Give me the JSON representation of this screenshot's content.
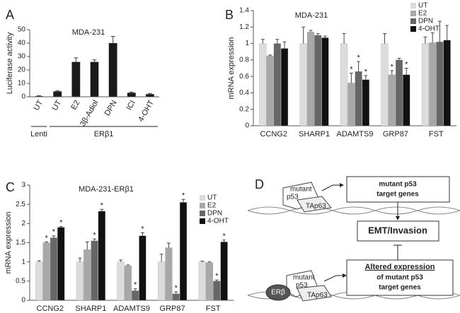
{
  "chart_data": [
    {
      "type": "bar",
      "panel_label": "A",
      "title": "MDA-231",
      "y_label": "Luciferase activity",
      "categories": [
        "UT",
        "UT",
        "E2",
        "3β-Adiol",
        "DPN",
        "ICI",
        "4-OHT"
      ],
      "values": [
        0.5,
        4,
        26,
        26,
        40,
        3,
        2
      ],
      "errors": [
        0.3,
        0.5,
        3,
        1.5,
        5,
        0.5,
        0.5
      ],
      "color": "#1a1a1a",
      "group_labels": [
        "Lenti",
        "ERβ1"
      ],
      "ylim": [
        0,
        50
      ],
      "yticks": [
        0,
        10,
        20,
        30,
        40,
        50
      ]
    },
    {
      "type": "bar",
      "panel_label": "B",
      "title": "MDA-231",
      "y_label": "mRNA expression",
      "significance_label": "*",
      "categories": [
        "CCNG2",
        "SHARP1",
        "ADAMTS9",
        "GRP87",
        "FST"
      ],
      "series": [
        {
          "name": "UT",
          "color": "#dcdcdc",
          "values": [
            1.0,
            1.0,
            1.0,
            1.0,
            1.0
          ],
          "errors": [
            0.05,
            0.2,
            0.12,
            0.12,
            0.08
          ],
          "significant": [
            false,
            false,
            false,
            false,
            false
          ]
        },
        {
          "name": "E2",
          "color": "#a8a8a8",
          "values": [
            0.85,
            1.14,
            0.52,
            0.62,
            1.01
          ],
          "errors": [
            0.01,
            0.02,
            0.12,
            0.05,
            0.12
          ],
          "significant": [
            false,
            false,
            true,
            true,
            false
          ]
        },
        {
          "name": "DPN",
          "color": "#666666",
          "values": [
            1.0,
            1.1,
            0.66,
            0.8,
            1.02
          ],
          "errors": [
            0.05,
            0.02,
            0.12,
            0.02,
            0.25
          ],
          "significant": [
            false,
            false,
            true,
            false,
            false
          ]
        },
        {
          "name": "4-OHT",
          "color": "#111111",
          "values": [
            0.94,
            1.07,
            0.56,
            0.62,
            1.04
          ],
          "errors": [
            0.08,
            0.02,
            0.05,
            0.08,
            0.18
          ],
          "significant": [
            false,
            false,
            true,
            true,
            false
          ]
        }
      ],
      "ylim": [
        0,
        1.4
      ],
      "yticks": [
        0,
        0.2,
        0.4,
        0.6,
        0.8,
        1,
        1.2,
        1.4
      ]
    },
    {
      "type": "bar",
      "panel_label": "C",
      "title": "MDA-231-ERβ1",
      "y_label": "mRNA expression",
      "significance_label": "*",
      "categories": [
        "CCNG2",
        "SHARP1",
        "ADAMTS9",
        "GRP87",
        "FST"
      ],
      "series": [
        {
          "name": "UT",
          "color": "#dcdcdc",
          "values": [
            1,
            1,
            1,
            1,
            1
          ],
          "errors": [
            0.03,
            0.1,
            0.05,
            0.2,
            0.02
          ],
          "significant": [
            false,
            false,
            false,
            false,
            false
          ]
        },
        {
          "name": "E2",
          "color": "#a8a8a8",
          "values": [
            1.5,
            1.32,
            0.9,
            1.37,
            0.98
          ],
          "errors": [
            0.02,
            0.2,
            0.02,
            0.12,
            0.02
          ],
          "significant": [
            true,
            false,
            false,
            false,
            false
          ]
        },
        {
          "name": "DPN",
          "color": "#666666",
          "values": [
            1.63,
            1.55,
            0.25,
            0.17,
            0.5
          ],
          "errors": [
            0.05,
            0.05,
            0.05,
            0.05,
            0.03
          ],
          "significant": [
            true,
            true,
            true,
            true,
            true
          ]
        },
        {
          "name": "4-OHT",
          "color": "#111111",
          "values": [
            1.9,
            2.32,
            1.68,
            2.55,
            1.52
          ],
          "errors": [
            0.02,
            0.05,
            0.08,
            0.08,
            0.05
          ],
          "significant": [
            true,
            true,
            true,
            true,
            true
          ]
        }
      ],
      "ylim": [
        0,
        3
      ],
      "yticks": [
        0,
        0.5,
        1,
        1.5,
        2,
        2.5,
        3
      ]
    }
  ],
  "diagram": {
    "panel_label": "D",
    "top_complex": [
      "mutant",
      "p53",
      "TAp63"
    ],
    "bottom_complex": [
      "mutant",
      "p53",
      "ERβ",
      "TAp63"
    ],
    "target_box": [
      "mutant p53",
      "target genes"
    ],
    "emt_box": "EMT/Invasion",
    "altered_box": [
      "Altered expression",
      "of mutant p53",
      "target genes"
    ]
  }
}
